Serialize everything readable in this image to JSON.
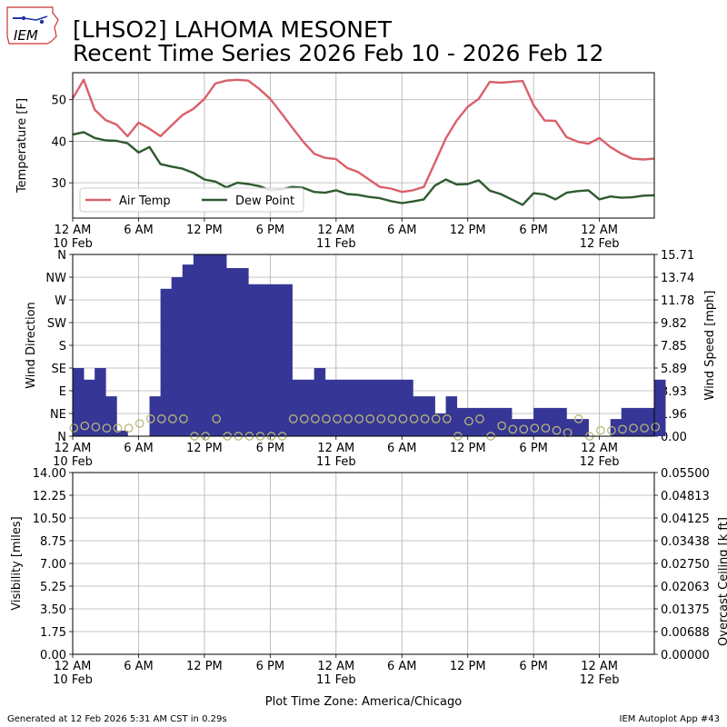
{
  "header": {
    "logo_text": "IEM",
    "title_line1": "[LHSO2] LAHOMA MESONET",
    "title_line2": "Recent Time Series 2026 Feb 10 - 2026 Feb 12"
  },
  "footer": {
    "generated": "Generated at 12 Feb 2026 5:31 AM CST in 0.29s",
    "app": "IEM Autoplot App #43",
    "timezone": "Plot Time Zone: America/Chicago"
  },
  "colors": {
    "air_temp": "#d9606a",
    "dew_point": "#2f5a2f",
    "wind_bar": "#363696",
    "gust_marker": "#b8b878",
    "ceiling_label": "#008000",
    "grid": "#b0b0b0"
  },
  "chart_data": [
    {
      "type": "line",
      "ylabel": "Temperature [F]",
      "xlim": [
        0,
        53
      ],
      "ylim": [
        21.5,
        56.5
      ],
      "yticks": [
        {
          "value": 30,
          "label": "30"
        },
        {
          "value": 40,
          "label": "40"
        },
        {
          "value": 50,
          "label": "50"
        }
      ],
      "xticks": [
        {
          "hour": 0,
          "label": "12 AM",
          "sub": "10 Feb"
        },
        {
          "hour": 6,
          "label": "6 AM",
          "sub": ""
        },
        {
          "hour": 12,
          "label": "12 PM",
          "sub": ""
        },
        {
          "hour": 18,
          "label": "6 PM",
          "sub": ""
        },
        {
          "hour": 24,
          "label": "12 AM",
          "sub": "11 Feb"
        },
        {
          "hour": 30,
          "label": "6 AM",
          "sub": ""
        },
        {
          "hour": 36,
          "label": "12 PM",
          "sub": ""
        },
        {
          "hour": 42,
          "label": "6 PM",
          "sub": ""
        },
        {
          "hour": 48,
          "label": "12 AM",
          "sub": "12 Feb"
        }
      ],
      "legend_position": "lower-left",
      "series": [
        {
          "name": "Air Temp",
          "x": [
            0,
            1,
            2,
            3,
            4,
            5,
            6,
            7,
            8,
            9,
            10,
            11,
            12,
            13,
            14,
            15,
            16,
            17,
            18,
            19,
            20,
            21,
            22,
            23,
            24,
            25,
            26,
            27,
            28,
            29,
            30,
            31,
            32,
            33,
            34,
            35,
            36,
            37,
            38,
            39,
            40,
            41,
            42,
            43,
            44,
            45,
            46,
            47,
            48,
            49,
            50,
            51,
            52,
            53
          ],
          "y": [
            50.3,
            54.8,
            47.6,
            45.1,
            44.0,
            41.2,
            44.5,
            43.0,
            41.2,
            43.8,
            46.3,
            47.8,
            50.2,
            53.9,
            54.6,
            54.8,
            54.6,
            52.6,
            50.2,
            46.8,
            43.3,
            39.9,
            37.0,
            36.0,
            35.7,
            33.6,
            32.6,
            30.8,
            29.0,
            28.6,
            27.8,
            28.2,
            29.0,
            34.8,
            40.7,
            45.0,
            48.3,
            50.2,
            54.3,
            54.1,
            54.3,
            54.5,
            48.7,
            45.0,
            44.9,
            41.0,
            39.9,
            39.4,
            40.8,
            38.6,
            37.0,
            35.8,
            35.6,
            35.8
          ]
        },
        {
          "name": "Dew Point",
          "x": [
            0,
            1,
            2,
            3,
            4,
            5,
            6,
            7,
            8,
            9,
            10,
            11,
            12,
            13,
            14,
            15,
            16,
            17,
            18,
            19,
            20,
            21,
            22,
            23,
            24,
            25,
            26,
            27,
            28,
            29,
            30,
            31,
            32,
            33,
            34,
            35,
            36,
            37,
            38,
            39,
            40,
            41,
            42,
            43,
            44,
            45,
            46,
            47,
            48,
            49,
            50,
            51,
            52,
            53
          ],
          "y": [
            41.6,
            42.2,
            40.8,
            40.2,
            40.1,
            39.5,
            37.3,
            38.6,
            34.5,
            33.9,
            33.4,
            32.4,
            30.8,
            30.3,
            28.9,
            30.0,
            29.7,
            29.2,
            28.2,
            28.4,
            29.0,
            28.8,
            27.8,
            27.6,
            28.2,
            27.3,
            27.1,
            26.6,
            26.3,
            25.6,
            25.1,
            25.5,
            26.0,
            29.3,
            30.8,
            29.6,
            29.7,
            30.6,
            28.1,
            27.3,
            26.0,
            24.7,
            27.5,
            27.2,
            26.0,
            27.6,
            28.0,
            28.2,
            26.0,
            26.7,
            26.4,
            26.5,
            26.9,
            27.0
          ]
        }
      ]
    },
    {
      "type": "bar",
      "ylabel": "Wind Direction",
      "y2label": "Wind Speed [mph]",
      "xlim": [
        0,
        53
      ],
      "ylim": [
        0,
        360
      ],
      "y2lim": [
        0,
        15.71
      ],
      "yticks": [
        {
          "value": 0,
          "label": "N"
        },
        {
          "value": 45,
          "label": "NE"
        },
        {
          "value": 90,
          "label": "E"
        },
        {
          "value": 135,
          "label": "SE"
        },
        {
          "value": 180,
          "label": "S"
        },
        {
          "value": 225,
          "label": "SW"
        },
        {
          "value": 270,
          "label": "W"
        },
        {
          "value": 315,
          "label": "NW"
        },
        {
          "value": 360,
          "label": "N"
        }
      ],
      "y2ticks": [
        "0.00",
        "1.96",
        "3.93",
        "5.89",
        "7.85",
        "9.82",
        "11.78",
        "13.74",
        "15.71"
      ],
      "xticks": [
        {
          "hour": 0,
          "label": "12 AM",
          "sub": "10 Feb"
        },
        {
          "hour": 6,
          "label": "6 AM",
          "sub": ""
        },
        {
          "hour": 12,
          "label": "12 PM",
          "sub": ""
        },
        {
          "hour": 18,
          "label": "6 PM",
          "sub": ""
        },
        {
          "hour": 24,
          "label": "12 AM",
          "sub": "11 Feb"
        },
        {
          "hour": 30,
          "label": "6 AM",
          "sub": ""
        },
        {
          "hour": 36,
          "label": "12 PM",
          "sub": ""
        },
        {
          "hour": 42,
          "label": "6 PM",
          "sub": ""
        },
        {
          "hour": 48,
          "label": "12 AM",
          "sub": "12 Feb"
        }
      ],
      "series": [
        {
          "name": "",
          "x": [
            0,
            1,
            2,
            3,
            4,
            5,
            6,
            7,
            8,
            9,
            10,
            11,
            12,
            13,
            14,
            15,
            16,
            17,
            18,
            19,
            20,
            21,
            22,
            23,
            24,
            25,
            26,
            27,
            28,
            29,
            30,
            31,
            32,
            33,
            34,
            35,
            36,
            37,
            38,
            39,
            40,
            41,
            42,
            43,
            44,
            45,
            46,
            47,
            48,
            49,
            50,
            51,
            52,
            53
          ],
          "y": [
            135,
            112,
            135,
            79,
            11,
            0,
            0,
            79,
            292,
            315,
            340,
            382,
            382,
            382,
            333,
            333,
            301,
            301,
            301,
            301,
            112,
            112,
            135,
            112,
            112,
            112,
            112,
            112,
            112,
            112,
            112,
            79,
            79,
            45,
            79,
            56,
            56,
            56,
            56,
            56,
            34,
            34,
            56,
            56,
            56,
            34,
            34,
            0,
            0,
            34,
            56,
            56,
            56,
            112
          ]
        },
        {
          "name": "",
          "x": [
            0,
            1,
            2,
            3,
            4,
            5,
            6,
            7,
            8,
            9,
            10,
            11,
            12,
            13,
            14,
            15,
            16,
            17,
            18,
            19,
            20,
            21,
            22,
            23,
            24,
            25,
            26,
            27,
            28,
            29,
            30,
            31,
            32,
            33,
            34,
            35,
            36,
            37,
            38,
            39,
            40,
            41,
            42,
            43,
            44,
            45,
            46,
            47,
            48,
            49,
            50,
            51,
            52,
            53
          ],
          "y": [
            0.7,
            0.9,
            0.8,
            0.7,
            0.7,
            0.7,
            1.1,
            1.5,
            1.5,
            1.5,
            1.5,
            0.0,
            0.0,
            1.5,
            0.0,
            0.0,
            0.0,
            0.0,
            0.0,
            0.0,
            1.5,
            1.5,
            1.5,
            1.5,
            1.5,
            1.5,
            1.5,
            1.5,
            1.5,
            1.5,
            1.5,
            1.5,
            1.5,
            1.5,
            1.5,
            0.0,
            1.3,
            1.5,
            0.0,
            0.9,
            0.6,
            0.6,
            0.7,
            0.7,
            0.5,
            0.3,
            1.5,
            0.0,
            0.5,
            0.5,
            0.6,
            0.7,
            0.7,
            0.8
          ]
        }
      ]
    },
    {
      "type": "line",
      "ylabel": "Visibility [miles]",
      "y2label": "Overcast Ceiling [k ft]",
      "xlim": [
        0,
        53
      ],
      "ylim": [
        0,
        14
      ],
      "y2lim": [
        0,
        0.055
      ],
      "yticks": [
        "0.00",
        "1.75",
        "3.50",
        "5.25",
        "7.00",
        "8.75",
        "10.50",
        "12.25",
        "14.00"
      ],
      "y2ticks": [
        "0.00000",
        "0.00688",
        "0.01375",
        "0.02063",
        "0.02750",
        "0.03438",
        "0.04125",
        "0.04813",
        "0.05500"
      ],
      "xticks": [
        {
          "hour": 0,
          "label": "12 AM",
          "sub": "10 Feb"
        },
        {
          "hour": 6,
          "label": "6 AM",
          "sub": ""
        },
        {
          "hour": 12,
          "label": "12 PM",
          "sub": ""
        },
        {
          "hour": 18,
          "label": "6 PM",
          "sub": ""
        },
        {
          "hour": 24,
          "label": "12 AM",
          "sub": "11 Feb"
        },
        {
          "hour": 30,
          "label": "6 AM",
          "sub": ""
        },
        {
          "hour": 36,
          "label": "12 PM",
          "sub": ""
        },
        {
          "hour": 42,
          "label": "6 PM",
          "sub": ""
        },
        {
          "hour": 48,
          "label": "12 AM",
          "sub": "12 Feb"
        }
      ],
      "series": []
    }
  ]
}
